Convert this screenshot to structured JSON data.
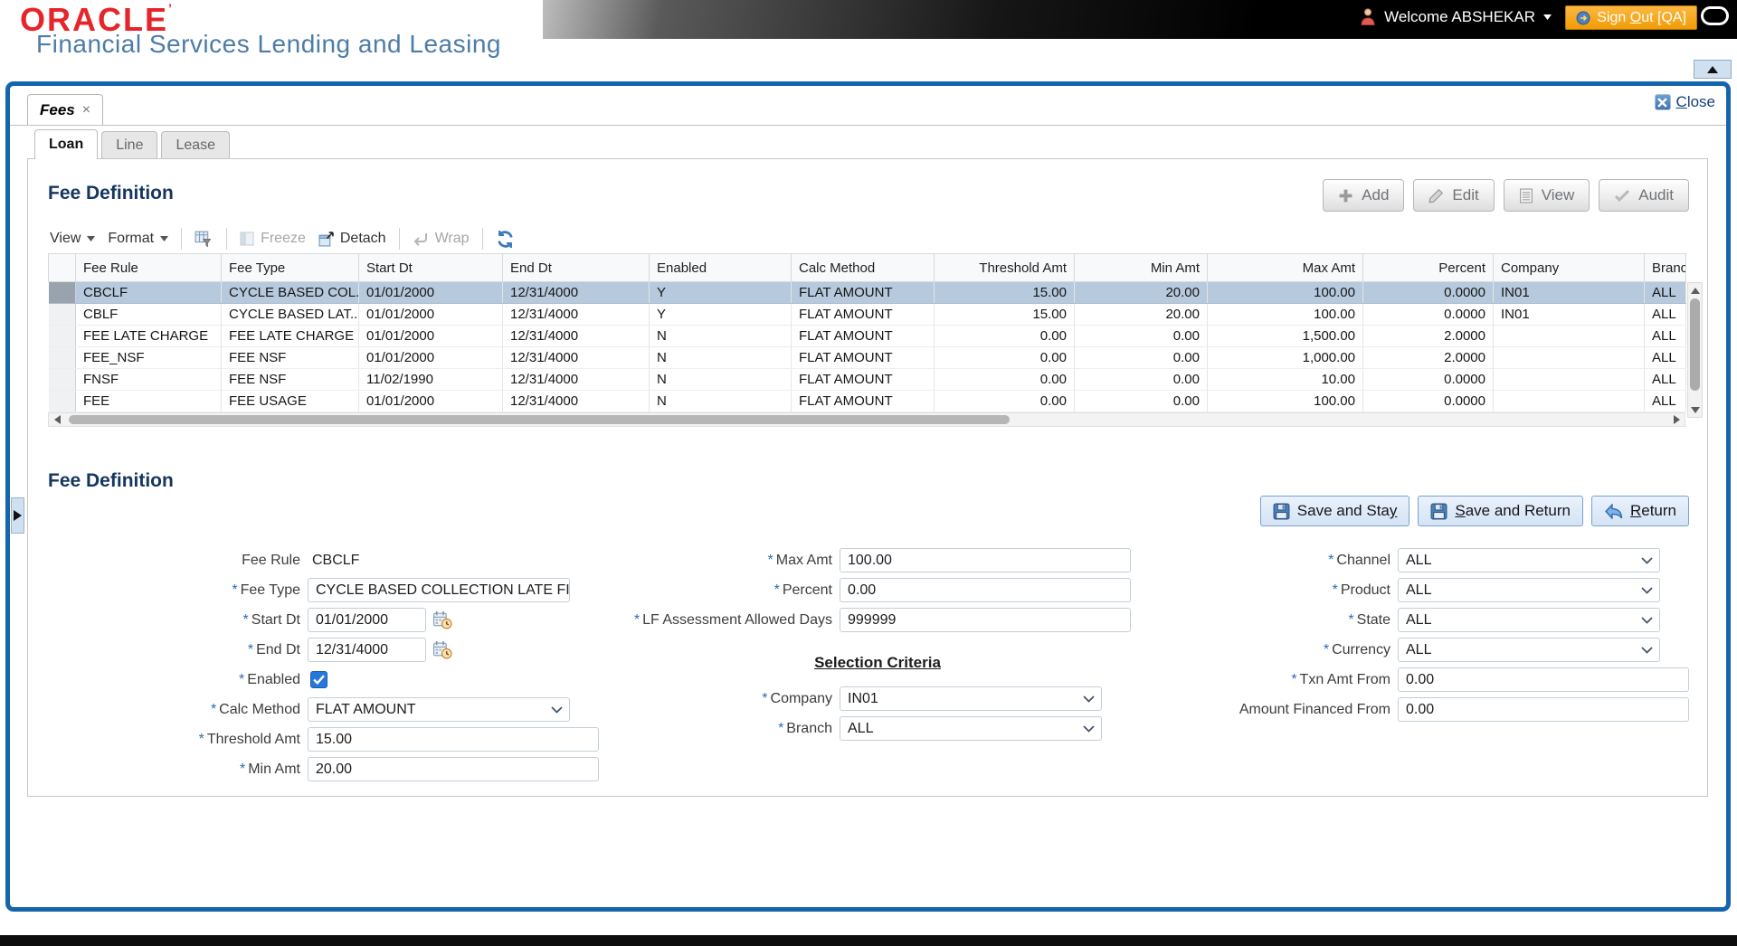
{
  "header": {
    "brand": "ORACLE",
    "brand_mark": "’",
    "product": "Financial Services Lending and Leasing",
    "user_welcome": "Welcome ABSHEKAR",
    "sign_out_pre": "Sign ",
    "sign_out_key": "O",
    "sign_out_post": "ut [QA]"
  },
  "workspace": {
    "tab_label": "Fees",
    "tab_close_glyph": "×",
    "close_key": "C",
    "close_rest": "lose",
    "subtabs": [
      {
        "label": "Loan",
        "active": true
      },
      {
        "label": "Line",
        "active": false
      },
      {
        "label": "Lease",
        "active": false
      }
    ]
  },
  "grid": {
    "title": "Fee Definition",
    "toolbar": {
      "view_label": "View",
      "format_label": "Format",
      "freeze_label": "Freeze",
      "detach_label": "Detach",
      "wrap_label": "Wrap"
    },
    "actions": [
      {
        "label": "Add",
        "icon": "plus"
      },
      {
        "label": "Edit",
        "icon": "pencil"
      },
      {
        "label": "View",
        "icon": "doc"
      },
      {
        "label": "Audit",
        "icon": "check"
      }
    ],
    "columns": [
      {
        "label": "Fee Rule",
        "align": "left"
      },
      {
        "label": "Fee Type",
        "align": "left"
      },
      {
        "label": "Start Dt",
        "align": "left"
      },
      {
        "label": "End Dt",
        "align": "left"
      },
      {
        "label": "Enabled",
        "align": "left"
      },
      {
        "label": "Calc Method",
        "align": "left"
      },
      {
        "label": "Threshold Amt",
        "align": "right"
      },
      {
        "label": "Min Amt",
        "align": "right"
      },
      {
        "label": "Max Amt",
        "align": "right"
      },
      {
        "label": "Percent",
        "align": "right"
      },
      {
        "label": "Company",
        "align": "left"
      },
      {
        "label": "Branch",
        "align": "left"
      }
    ],
    "rows": [
      {
        "selected": true,
        "cells": [
          "CBCLF",
          "CYCLE BASED COL...",
          "01/01/2000",
          "12/31/4000",
          "Y",
          "FLAT AMOUNT",
          "15.00",
          "20.00",
          "100.00",
          "0.0000",
          "IN01",
          "ALL"
        ]
      },
      {
        "selected": false,
        "cells": [
          "CBLF",
          "CYCLE BASED LAT...",
          "01/01/2000",
          "12/31/4000",
          "Y",
          "FLAT AMOUNT",
          "15.00",
          "20.00",
          "100.00",
          "0.0000",
          "IN01",
          "ALL"
        ]
      },
      {
        "selected": false,
        "cells": [
          "FEE LATE CHARGE",
          "FEE LATE CHARGE",
          "01/01/2000",
          "12/31/4000",
          "N",
          "FLAT AMOUNT",
          "0.00",
          "0.00",
          "1,500.00",
          "2.0000",
          "",
          "ALL"
        ]
      },
      {
        "selected": false,
        "cells": [
          "FEE_NSF",
          "FEE NSF",
          "01/01/2000",
          "12/31/4000",
          "N",
          "FLAT AMOUNT",
          "0.00",
          "0.00",
          "1,000.00",
          "2.0000",
          "",
          "ALL"
        ]
      },
      {
        "selected": false,
        "cells": [
          "FNSF",
          "FEE NSF",
          "11/02/1990",
          "12/31/4000",
          "N",
          "FLAT AMOUNT",
          "0.00",
          "0.00",
          "10.00",
          "0.0000",
          "",
          "ALL"
        ]
      },
      {
        "selected": false,
        "cells": [
          "FEE",
          "FEE USAGE",
          "01/01/2000",
          "12/31/4000",
          "N",
          "FLAT AMOUNT",
          "0.00",
          "0.00",
          "100.00",
          "0.0000",
          "",
          "ALL"
        ]
      }
    ]
  },
  "detail": {
    "title": "Fee Definition",
    "required_marker": "*",
    "buttons": [
      {
        "icon": "save",
        "pre": "Save and Sta",
        "key": "y",
        "post": ""
      },
      {
        "icon": "save",
        "pre": "",
        "key": "S",
        "post": "ave and Return"
      },
      {
        "icon": "return-arrow",
        "pre": "",
        "key": "R",
        "post": "eturn"
      }
    ],
    "columns": [
      {
        "fields": [
          {
            "label": "Fee Rule",
            "type": "static",
            "value": "CBCLF"
          },
          {
            "label": "Fee Type",
            "required": true,
            "type": "select",
            "value": "CYCLE BASED COLLECTION LATE FI",
            "size": "m"
          },
          {
            "label": "Start Dt",
            "required": true,
            "type": "date",
            "value": "01/01/2000",
            "size": "s"
          },
          {
            "label": "End Dt",
            "required": true,
            "type": "date",
            "value": "12/31/4000",
            "size": "s"
          },
          {
            "label": "Enabled",
            "required": true,
            "type": "checkbox",
            "value": true
          },
          {
            "label": "Calc Method",
            "required": true,
            "type": "select",
            "value": "FLAT AMOUNT",
            "size": "m"
          },
          {
            "label": "Threshold Amt",
            "required": true,
            "type": "text",
            "value": "15.00",
            "size": "l"
          },
          {
            "label": "Min Amt",
            "required": true,
            "type": "text",
            "value": "20.00",
            "size": "l"
          }
        ]
      },
      {
        "fields": [
          {
            "label": "Max Amt",
            "required": true,
            "type": "text",
            "value": "100.00",
            "size": "l"
          },
          {
            "label": "Percent",
            "required": true,
            "type": "text",
            "value": "0.00",
            "size": "l"
          },
          {
            "label": "LF Assessment Allowed Days",
            "required": true,
            "type": "text",
            "value": "999999",
            "size": "l"
          },
          {
            "label": "Selection Criteria",
            "type": "heading"
          },
          {
            "label": "Company",
            "required": true,
            "type": "select",
            "value": "IN01",
            "size": "m"
          },
          {
            "label": "Branch",
            "required": true,
            "type": "select",
            "value": "ALL",
            "size": "m"
          }
        ]
      },
      {
        "fields": [
          {
            "label": "Channel",
            "required": true,
            "type": "select",
            "value": "ALL",
            "size": "m"
          },
          {
            "label": "Product",
            "required": true,
            "type": "select",
            "value": "ALL",
            "size": "m"
          },
          {
            "label": "State",
            "required": true,
            "type": "select",
            "value": "ALL",
            "size": "m"
          },
          {
            "label": "Currency",
            "required": true,
            "type": "select",
            "value": "ALL",
            "size": "m"
          },
          {
            "label": "Txn Amt From",
            "required": true,
            "type": "text",
            "value": "0.00",
            "size": "l"
          },
          {
            "label": "Amount Financed From",
            "type": "text",
            "value": "0.00",
            "size": "l"
          }
        ]
      }
    ]
  },
  "colors": {
    "window_border_blue": "#1565ad",
    "selected_row_blue": "#b7c9dc",
    "sign_out_orange": "#f09c06",
    "heading_navy": "#15365f",
    "brand_red": "#e8242b",
    "product_blue": "#4d7ca8"
  }
}
